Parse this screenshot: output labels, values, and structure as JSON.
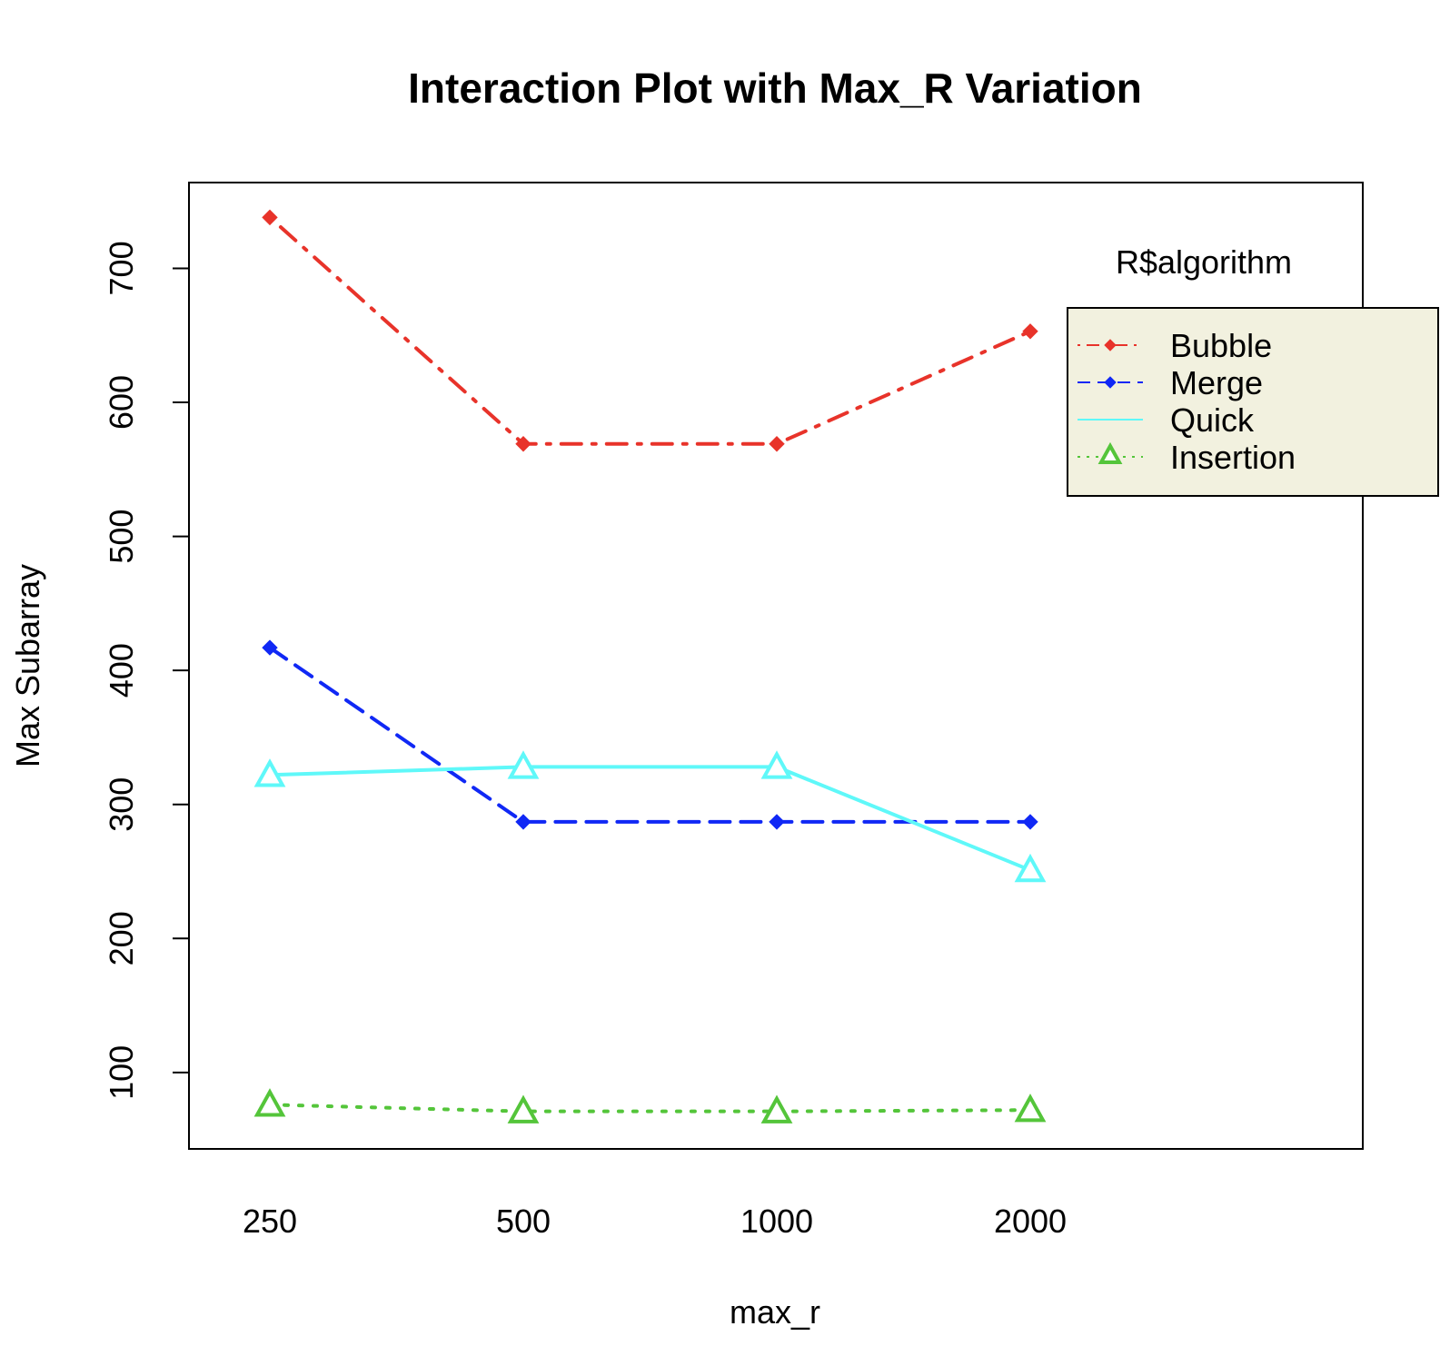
{
  "chart_data": {
    "type": "line",
    "title": "Interaction Plot with Max_R Variation",
    "xlabel": "max_r",
    "ylabel": "Max Subarray",
    "categories": [
      "250",
      "500",
      "1000",
      "2000"
    ],
    "yticks": [
      100,
      200,
      300,
      400,
      500,
      600,
      700
    ],
    "ylim": [
      43,
      764
    ],
    "grid": false,
    "legend_title": "R$algorithm",
    "legend_placement": "top-right",
    "series": [
      {
        "name": "Bubble",
        "values": [
          738,
          569,
          569,
          653
        ],
        "color": "#e8332a",
        "line_style": "dotdash",
        "marker": "diamond"
      },
      {
        "name": "Merge",
        "values": [
          417,
          287,
          287,
          287
        ],
        "color": "#1028f5",
        "line_style": "dashed",
        "marker": "diamond"
      },
      {
        "name": "Quick",
        "values": [
          322,
          328,
          328,
          251
        ],
        "color": "#5ff8f9",
        "line_style": "solid",
        "marker": "triangle"
      },
      {
        "name": "Insertion",
        "values": [
          76,
          71,
          71,
          72
        ],
        "color": "#54c53a",
        "line_style": "dotted",
        "marker": "triangle"
      }
    ]
  }
}
